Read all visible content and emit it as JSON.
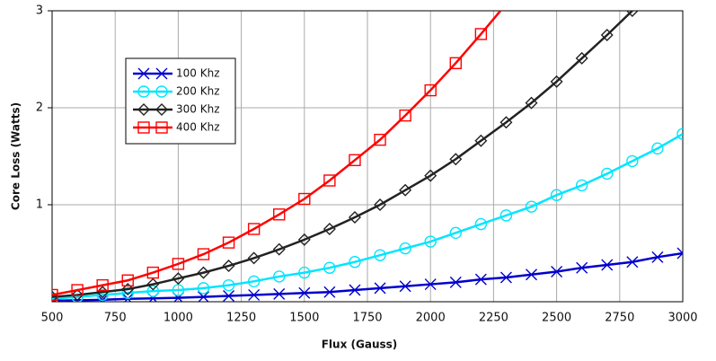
{
  "chart_data": {
    "type": "line",
    "xlabel": "Flux (Gauss)",
    "ylabel": "Core Loss (Watts)",
    "x": [
      500,
      600,
      700,
      800,
      900,
      1000,
      1100,
      1200,
      1300,
      1400,
      1500,
      1600,
      1700,
      1800,
      1900,
      2000,
      2100,
      2200,
      2300,
      2400,
      2500,
      2600,
      2700,
      2800,
      2900,
      3000
    ],
    "series": [
      {
        "name": "100 Khz",
        "color": "#0000cc",
        "marker": "x",
        "values": [
          0.01,
          0.015,
          0.02,
          0.03,
          0.035,
          0.04,
          0.05,
          0.06,
          0.07,
          0.08,
          0.09,
          0.1,
          0.12,
          0.14,
          0.16,
          0.18,
          0.2,
          0.23,
          0.25,
          0.28,
          0.31,
          0.35,
          0.38,
          0.41,
          0.46,
          0.5
        ]
      },
      {
        "name": "200 Khz",
        "color": "#00e5ff",
        "marker": "circle",
        "values": [
          0.03,
          0.05,
          0.07,
          0.09,
          0.11,
          0.12,
          0.14,
          0.17,
          0.21,
          0.26,
          0.3,
          0.35,
          0.41,
          0.48,
          0.55,
          0.62,
          0.71,
          0.8,
          0.89,
          0.98,
          1.1,
          1.2,
          1.32,
          1.45,
          1.58,
          1.73
        ]
      },
      {
        "name": "300 Khz",
        "color": "#222222",
        "marker": "diamond",
        "values": [
          0.05,
          0.07,
          0.1,
          0.13,
          0.18,
          0.24,
          0.3,
          0.37,
          0.45,
          0.54,
          0.64,
          0.75,
          0.87,
          1.0,
          1.15,
          1.3,
          1.47,
          1.66,
          1.85,
          2.05,
          2.27,
          2.51,
          2.75,
          3.0,
          3.25,
          null
        ]
      },
      {
        "name": "400 Khz",
        "color": "#ff0000",
        "marker": "square",
        "values": [
          0.07,
          0.12,
          0.17,
          0.22,
          0.3,
          0.39,
          0.49,
          0.61,
          0.75,
          0.9,
          1.06,
          1.25,
          1.46,
          1.67,
          1.92,
          2.18,
          2.46,
          2.76,
          3.07,
          null,
          null,
          null,
          null,
          null,
          null,
          null
        ]
      }
    ],
    "xlim": [
      500,
      3000
    ],
    "xticks": [
      500,
      750,
      1000,
      1250,
      1500,
      1750,
      2000,
      2250,
      2500,
      2750,
      3000
    ],
    "ylim": [
      0,
      3
    ],
    "yticks": [
      1,
      2,
      3
    ],
    "grid": true
  }
}
